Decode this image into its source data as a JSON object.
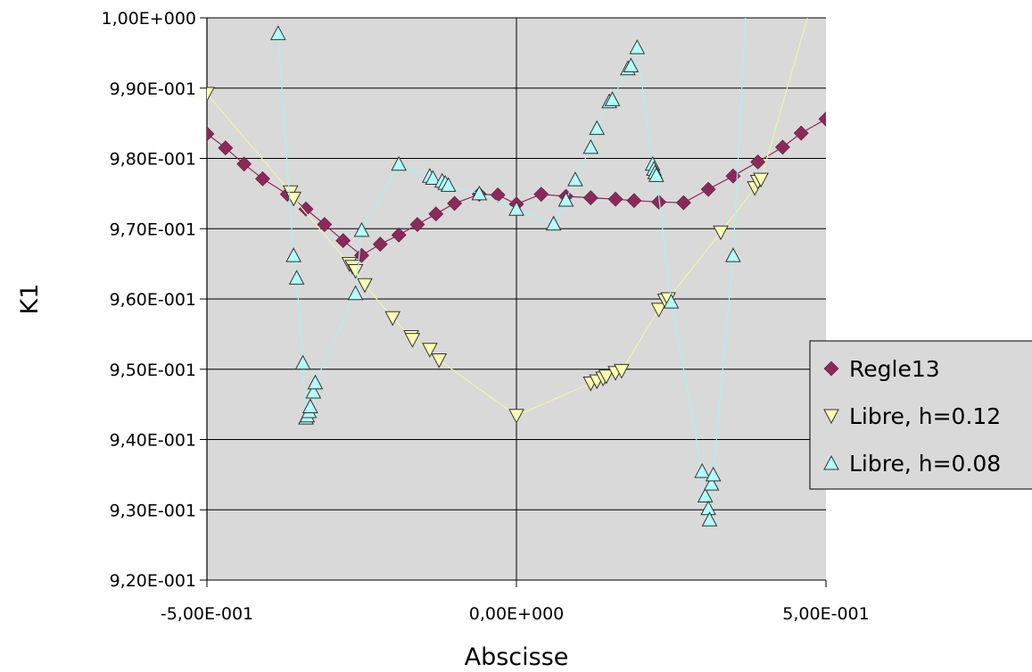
{
  "chart_data": {
    "type": "scatter",
    "title": "",
    "xlabel": "Abscisse",
    "ylabel": "K1",
    "xlim": [
      -0.5,
      0.5
    ],
    "ylim": [
      0.92,
      1.0
    ],
    "x_ticks": [
      -0.5,
      0,
      0.5
    ],
    "x_tick_labels": [
      "-5,00E-001",
      "0,00E+000",
      "5,00E-001"
    ],
    "y_ticks": [
      0.92,
      0.93,
      0.94,
      0.95,
      0.96,
      0.97,
      0.98,
      0.99,
      1.0
    ],
    "y_tick_labels": [
      "9,20E-001",
      "9,30E-001",
      "9,40E-001",
      "9,50E-001",
      "9,60E-001",
      "9,70E-001",
      "9,80E-001",
      "9,90E-001",
      "1,00E+000"
    ],
    "grid": "horizontal",
    "background": "#d9d9d9",
    "legend_position": "right",
    "series": [
      {
        "name": "Regle13",
        "marker": "diamond",
        "color": "#8b2a5a",
        "line_color": "#8b2a5a",
        "points": [
          [
            -0.5,
            0.9835
          ],
          [
            -0.47,
            0.9815
          ],
          [
            -0.44,
            0.9792
          ],
          [
            -0.41,
            0.9771
          ],
          [
            -0.37,
            0.9749
          ],
          [
            -0.34,
            0.9728
          ],
          [
            -0.31,
            0.9706
          ],
          [
            -0.28,
            0.9683
          ],
          [
            -0.25,
            0.9662
          ],
          [
            -0.22,
            0.9678
          ],
          [
            -0.19,
            0.9691
          ],
          [
            -0.16,
            0.9706
          ],
          [
            -0.13,
            0.9721
          ],
          [
            -0.1,
            0.9736
          ],
          [
            -0.06,
            0.9749
          ],
          [
            -0.03,
            0.9748
          ],
          [
            0.0,
            0.9735
          ],
          [
            0.04,
            0.9749
          ],
          [
            0.08,
            0.9746
          ],
          [
            0.12,
            0.9744
          ],
          [
            0.16,
            0.9742
          ],
          [
            0.19,
            0.974
          ],
          [
            0.23,
            0.9738
          ],
          [
            0.27,
            0.9737
          ],
          [
            0.31,
            0.9756
          ],
          [
            0.35,
            0.9775
          ],
          [
            0.39,
            0.9795
          ],
          [
            0.43,
            0.9816
          ],
          [
            0.46,
            0.9836
          ],
          [
            0.5,
            0.9856
          ]
        ]
      },
      {
        "name": "Libre, h=0.12",
        "marker": "triangle-down",
        "color": "#ffffb3",
        "line_color": "#f2f2a6",
        "points": [
          [
            -0.5,
            0.9892
          ],
          [
            -0.365,
            0.9752
          ],
          [
            -0.36,
            0.9743
          ],
          [
            -0.27,
            0.965
          ],
          [
            -0.265,
            0.9646
          ],
          [
            -0.26,
            0.964
          ],
          [
            -0.245,
            0.962
          ],
          [
            -0.2,
            0.9573
          ],
          [
            -0.17,
            0.9546
          ],
          [
            -0.168,
            0.9542
          ],
          [
            -0.14,
            0.9528
          ],
          [
            -0.125,
            0.9513
          ],
          [
            0.0,
            0.9434
          ],
          [
            0.12,
            0.948
          ],
          [
            0.13,
            0.9483
          ],
          [
            0.14,
            0.9487
          ],
          [
            0.145,
            0.949
          ],
          [
            0.16,
            0.9495
          ],
          [
            0.17,
            0.9498
          ],
          [
            0.23,
            0.9585
          ],
          [
            0.24,
            0.9598
          ],
          [
            0.245,
            0.96
          ],
          [
            0.33,
            0.9695
          ],
          [
            0.385,
            0.9758
          ],
          [
            0.39,
            0.9767
          ],
          [
            0.395,
            0.977
          ],
          [
            0.47,
            1.0
          ]
        ]
      },
      {
        "name": "Libre, h=0.08",
        "marker": "triangle-up",
        "color": "#b3ffff",
        "line_color": "#a6f2f2",
        "points": [
          [
            -0.385,
            0.9978
          ],
          [
            -0.36,
            0.9662
          ],
          [
            -0.355,
            0.963
          ],
          [
            -0.345,
            0.9509
          ],
          [
            -0.34,
            0.9431
          ],
          [
            -0.338,
            0.9434
          ],
          [
            -0.335,
            0.944
          ],
          [
            -0.333,
            0.9447
          ],
          [
            -0.328,
            0.9468
          ],
          [
            -0.325,
            0.9481
          ],
          [
            -0.26,
            0.9608
          ],
          [
            -0.25,
            0.9698
          ],
          [
            -0.19,
            0.9792
          ],
          [
            -0.14,
            0.9775
          ],
          [
            -0.135,
            0.9772
          ],
          [
            -0.12,
            0.9768
          ],
          [
            -0.115,
            0.9765
          ],
          [
            -0.11,
            0.9762
          ],
          [
            -0.06,
            0.975
          ],
          [
            0.0,
            0.9728
          ],
          [
            0.06,
            0.9707
          ],
          [
            0.08,
            0.9741
          ],
          [
            0.095,
            0.977
          ],
          [
            0.12,
            0.9816
          ],
          [
            0.13,
            0.9843
          ],
          [
            0.15,
            0.9881
          ],
          [
            0.155,
            0.9884
          ],
          [
            0.18,
            0.9928
          ],
          [
            0.185,
            0.9932
          ],
          [
            0.195,
            0.9958
          ],
          [
            0.22,
            0.9792
          ],
          [
            0.222,
            0.9785
          ],
          [
            0.224,
            0.978
          ],
          [
            0.226,
            0.9776
          ],
          [
            0.25,
            0.9596
          ],
          [
            0.3,
            0.9355
          ],
          [
            0.305,
            0.932
          ],
          [
            0.31,
            0.9302
          ],
          [
            0.312,
            0.9286
          ],
          [
            0.315,
            0.9337
          ],
          [
            0.318,
            0.935
          ],
          [
            0.35,
            0.9662
          ],
          [
            0.37,
            1.0
          ]
        ]
      }
    ]
  }
}
